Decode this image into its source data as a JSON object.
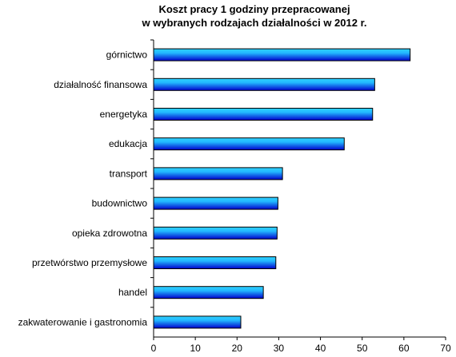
{
  "chart_data": {
    "type": "bar",
    "orientation": "horizontal",
    "title": [
      "Koszt pracy 1 godziny przepracowanej",
      "w wybranych rodzajach działalności w 2012 r."
    ],
    "categories": [
      "górnictwo",
      "działalność finansowa",
      "energetyka",
      "edukacja",
      "transport",
      "budownictwo",
      "opieka zdrowotna",
      "przetwórstwo przemysłowe",
      "handel",
      "zakwaterowanie i gastronomia"
    ],
    "values": [
      61.5,
      53.0,
      52.5,
      45.7,
      30.9,
      29.8,
      29.6,
      29.3,
      26.3,
      20.9
    ],
    "xlim": [
      0,
      70
    ],
    "xticks": [
      0,
      10,
      20,
      30,
      40,
      50,
      60,
      70
    ],
    "grid": false,
    "legend": "none",
    "colors": {
      "bar_light": "#33d6ff",
      "bar_dark": "#0000cc",
      "axis": "#000000"
    }
  }
}
